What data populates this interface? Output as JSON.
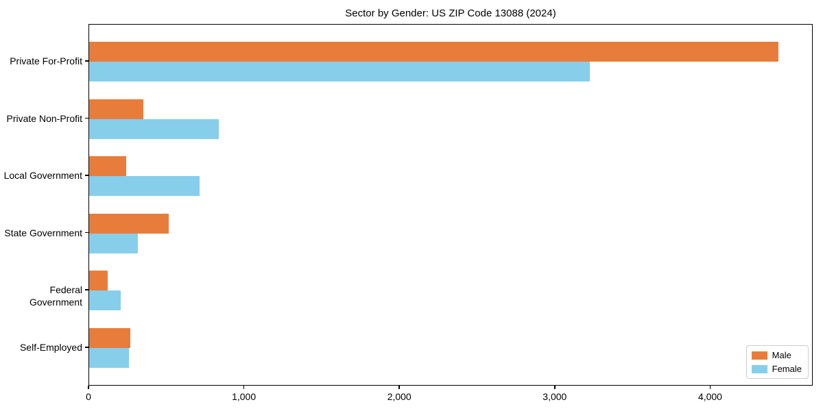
{
  "title": "Sector by Gender: US ZIP Code 13088 (2024)",
  "chart_data": {
    "type": "bar",
    "orientation": "horizontal",
    "title": "Sector by Gender: US ZIP Code 13088 (2024)",
    "categories": [
      "Private For-Profit",
      "Private Non-Profit",
      "Local Government",
      "State Government",
      "Federal Government",
      "Self-Employed"
    ],
    "series": [
      {
        "name": "Male",
        "color": "#E87D3B",
        "values": [
          4435,
          350,
          240,
          510,
          120,
          265
        ]
      },
      {
        "name": "Female",
        "color": "#87CEEB",
        "values": [
          3220,
          835,
          710,
          315,
          205,
          255
        ]
      }
    ],
    "xlabel": "",
    "ylabel": "",
    "xlim": [
      0,
      4660
    ],
    "x_ticks": [
      0,
      1000,
      2000,
      3000,
      4000
    ],
    "x_tick_labels": [
      "0",
      "1,000",
      "2,000",
      "3,000",
      "4,000"
    ],
    "grid": false,
    "legend_position": "lower right",
    "legend": [
      {
        "label": "Male",
        "color": "#E87D3B"
      },
      {
        "label": "Female",
        "color": "#87CEEB"
      }
    ]
  }
}
